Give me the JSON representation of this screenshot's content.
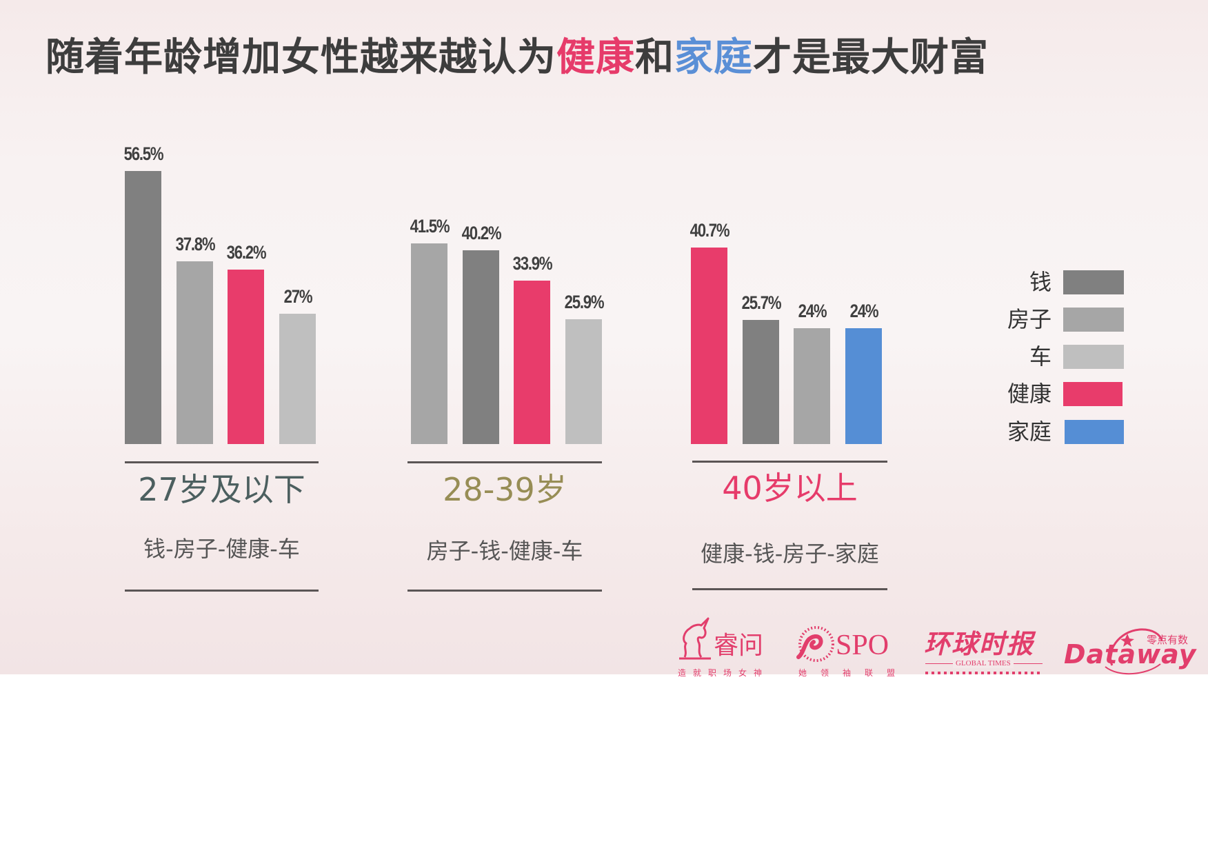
{
  "title": {
    "part1": "随着年龄增加女性越来越认为",
    "highlight1": "健康",
    "part2": "和",
    "highlight2": "家庭",
    "part3": "才是最大财富"
  },
  "colors": {
    "money": "#808080",
    "house": "#a6a6a6",
    "car": "#bfbfbf",
    "health": "#e83c6b",
    "family": "#558ed5",
    "title_highlight_health": "#e63b6a",
    "title_highlight_family": "#5a8fd6",
    "group1_label": "#4c5f5f",
    "group2_label": "#978d55",
    "group3_label": "#e63b6a"
  },
  "legend": {
    "items": [
      {
        "label": "钱",
        "color": "#808080"
      },
      {
        "label": "房子",
        "color": "#a6a6a6"
      },
      {
        "label": "车",
        "color": "#bfbfbf"
      },
      {
        "label": "健康",
        "color": "#e83c6b"
      },
      {
        "label": "家庭",
        "color": "#558ed5"
      }
    ]
  },
  "groups": [
    {
      "label": "27岁及以下",
      "ranking": "钱-房子-健康-车",
      "bars": [
        {
          "category": "钱",
          "value": 56.5,
          "text": "56.5%"
        },
        {
          "category": "房子",
          "value": 37.8,
          "text": "37.8%"
        },
        {
          "category": "健康",
          "value": 36.2,
          "text": "36.2%"
        },
        {
          "category": "车",
          "value": 27,
          "text": "27%"
        }
      ]
    },
    {
      "label": "28-39岁",
      "ranking": "房子-钱-健康-车",
      "bars": [
        {
          "category": "房子",
          "value": 41.5,
          "text": "41.5%"
        },
        {
          "category": "钱",
          "value": 40.2,
          "text": "40.2%"
        },
        {
          "category": "健康",
          "value": 33.9,
          "text": "33.9%"
        },
        {
          "category": "车",
          "value": 25.9,
          "text": "25.9%"
        }
      ]
    },
    {
      "label": "40岁以上",
      "ranking": "健康-钱-房子-家庭",
      "bars": [
        {
          "category": "健康",
          "value": 40.7,
          "text": "40.7%"
        },
        {
          "category": "钱",
          "value": 25.7,
          "text": "25.7%"
        },
        {
          "category": "房子",
          "value": 24,
          "text": "24%"
        },
        {
          "category": "家庭",
          "value": 24,
          "text": "24%"
        }
      ]
    }
  ],
  "logos": {
    "ruiwen": {
      "name": "睿问",
      "tagline": "造就职场女神"
    },
    "spo": {
      "name": "SPO",
      "tagline": "她领袖联盟"
    },
    "global_times": {
      "name": "环球时报",
      "english": "GLOBAL TIMES"
    },
    "dataway": {
      "name": "Dataway",
      "chinese": "零点有数"
    }
  },
  "chart_data": {
    "type": "bar",
    "title": "随着年龄增加女性越来越认为健康和家庭才是最大财富",
    "categories": [
      "27岁及以下",
      "28-39岁",
      "40岁以上"
    ],
    "series": [
      {
        "name": "钱",
        "values": [
          56.5,
          40.2,
          25.7
        ]
      },
      {
        "name": "房子",
        "values": [
          37.8,
          41.5,
          24
        ]
      },
      {
        "name": "车",
        "values": [
          27,
          25.9,
          null
        ]
      },
      {
        "name": "健康",
        "values": [
          36.2,
          33.9,
          40.7
        ]
      },
      {
        "name": "家庭",
        "values": [
          null,
          null,
          24
        ]
      }
    ],
    "group_order": [
      [
        "钱",
        "房子",
        "健康",
        "车"
      ],
      [
        "房子",
        "钱",
        "健康",
        "车"
      ],
      [
        "健康",
        "钱",
        "房子",
        "家庭"
      ]
    ],
    "rankings": [
      "钱-房子-健康-车",
      "房子-钱-健康-车",
      "健康-钱-房子-家庭"
    ],
    "unit": "%",
    "xlabel": "",
    "ylabel": "",
    "ylim": [
      0,
      60
    ],
    "grid": false,
    "legend_position": "right"
  }
}
